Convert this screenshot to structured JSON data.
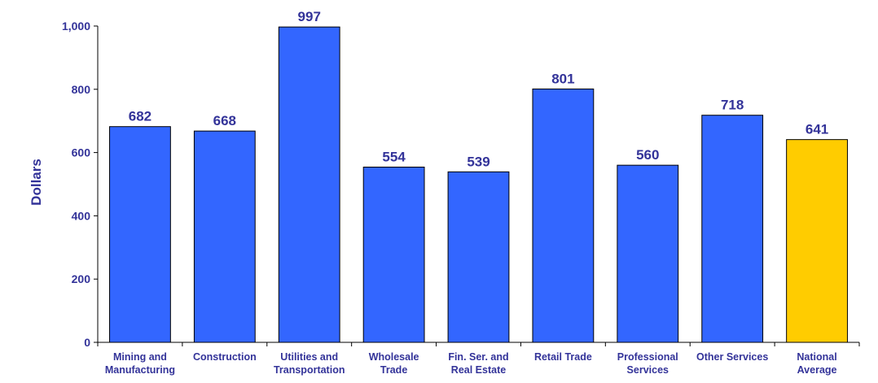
{
  "chart_data": {
    "type": "bar",
    "title": "",
    "xlabel": "",
    "ylabel": "Dollars",
    "ylim": [
      0,
      1000
    ],
    "yticks": [
      0,
      200,
      400,
      600,
      800,
      1000
    ],
    "ytick_labels": [
      "0",
      "200",
      "400",
      "600",
      "800",
      "1,000"
    ],
    "grid": false,
    "legend": "none",
    "categories": [
      [
        "Mining and",
        "Manufacturing"
      ],
      [
        "Construction"
      ],
      [
        "Utilities and",
        "Transportation"
      ],
      [
        "Wholesale",
        "Trade"
      ],
      [
        "Fin. Ser. and",
        "Real Estate"
      ],
      [
        "Retail Trade"
      ],
      [
        "Professional",
        "Services"
      ],
      [
        "Other Services"
      ],
      [
        "National",
        "Average"
      ]
    ],
    "values": [
      682,
      668,
      997,
      554,
      539,
      801,
      560,
      718,
      641
    ],
    "value_labels": [
      "682",
      "668",
      "997",
      "554",
      "539",
      "801",
      "560",
      "718",
      "641"
    ],
    "bar_colors": [
      "#3366ff",
      "#3366ff",
      "#3366ff",
      "#3366ff",
      "#3366ff",
      "#3366ff",
      "#3366ff",
      "#3366ff",
      "#ffcc00"
    ],
    "text_color": "#333399",
    "bar_edge_color": "#000000"
  }
}
